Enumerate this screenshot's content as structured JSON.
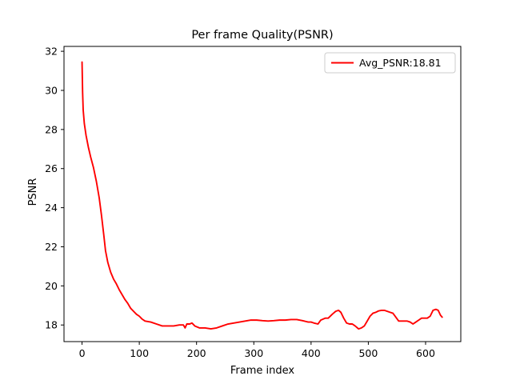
{
  "chart_data": {
    "type": "line",
    "title": "Per frame Quality(PSNR)",
    "xlabel": "Frame index",
    "ylabel": "PSNR",
    "xlim": [
      -31.5,
      661.5
    ],
    "ylim": [
      17.15,
      32.25
    ],
    "xticks": [
      0,
      100,
      200,
      300,
      400,
      500,
      600
    ],
    "yticks": [
      18,
      20,
      22,
      24,
      26,
      28,
      30,
      32
    ],
    "grid": false,
    "legend_position": "top-right",
    "series": [
      {
        "name": "Avg_PSNR:18.81",
        "color": "#ff0000",
        "points": [
          [
            0,
            31.45
          ],
          [
            1,
            29.9
          ],
          [
            2,
            29.0
          ],
          [
            4,
            28.3
          ],
          [
            7,
            27.7
          ],
          [
            11,
            27.1
          ],
          [
            15,
            26.6
          ],
          [
            20,
            26.05
          ],
          [
            25,
            25.35
          ],
          [
            30,
            24.5
          ],
          [
            34,
            23.6
          ],
          [
            38,
            22.6
          ],
          [
            41,
            21.8
          ],
          [
            45,
            21.2
          ],
          [
            50,
            20.7
          ],
          [
            55,
            20.35
          ],
          [
            60,
            20.1
          ],
          [
            65,
            19.8
          ],
          [
            70,
            19.55
          ],
          [
            75,
            19.3
          ],
          [
            80,
            19.1
          ],
          [
            85,
            18.85
          ],
          [
            90,
            18.7
          ],
          [
            95,
            18.55
          ],
          [
            100,
            18.45
          ],
          [
            105,
            18.3
          ],
          [
            110,
            18.2
          ],
          [
            120,
            18.15
          ],
          [
            130,
            18.05
          ],
          [
            140,
            17.95
          ],
          [
            150,
            17.95
          ],
          [
            160,
            17.95
          ],
          [
            170,
            18.0
          ],
          [
            177,
            18.0
          ],
          [
            180,
            17.85
          ],
          [
            183,
            18.05
          ],
          [
            188,
            18.05
          ],
          [
            192,
            18.1
          ],
          [
            197,
            17.95
          ],
          [
            205,
            17.85
          ],
          [
            215,
            17.85
          ],
          [
            225,
            17.8
          ],
          [
            235,
            17.85
          ],
          [
            245,
            17.95
          ],
          [
            255,
            18.05
          ],
          [
            265,
            18.1
          ],
          [
            275,
            18.15
          ],
          [
            285,
            18.2
          ],
          [
            295,
            18.25
          ],
          [
            305,
            18.25
          ],
          [
            315,
            18.22
          ],
          [
            325,
            18.2
          ],
          [
            335,
            18.22
          ],
          [
            345,
            18.25
          ],
          [
            355,
            18.25
          ],
          [
            365,
            18.28
          ],
          [
            375,
            18.28
          ],
          [
            385,
            18.22
          ],
          [
            395,
            18.15
          ],
          [
            400,
            18.15
          ],
          [
            405,
            18.1
          ],
          [
            412,
            18.05
          ],
          [
            417,
            18.25
          ],
          [
            425,
            18.35
          ],
          [
            430,
            18.35
          ],
          [
            437,
            18.55
          ],
          [
            443,
            18.7
          ],
          [
            448,
            18.75
          ],
          [
            452,
            18.65
          ],
          [
            457,
            18.35
          ],
          [
            462,
            18.1
          ],
          [
            467,
            18.05
          ],
          [
            472,
            18.05
          ],
          [
            477,
            17.95
          ],
          [
            483,
            17.8
          ],
          [
            488,
            17.85
          ],
          [
            493,
            17.95
          ],
          [
            498,
            18.2
          ],
          [
            503,
            18.45
          ],
          [
            508,
            18.6
          ],
          [
            513,
            18.65
          ],
          [
            518,
            18.72
          ],
          [
            523,
            18.75
          ],
          [
            528,
            18.75
          ],
          [
            533,
            18.7
          ],
          [
            538,
            18.65
          ],
          [
            543,
            18.6
          ],
          [
            548,
            18.4
          ],
          [
            553,
            18.2
          ],
          [
            558,
            18.2
          ],
          [
            563,
            18.2
          ],
          [
            568,
            18.2
          ],
          [
            573,
            18.15
          ],
          [
            578,
            18.05
          ],
          [
            583,
            18.15
          ],
          [
            588,
            18.25
          ],
          [
            593,
            18.35
          ],
          [
            598,
            18.35
          ],
          [
            603,
            18.35
          ],
          [
            608,
            18.45
          ],
          [
            613,
            18.75
          ],
          [
            618,
            18.8
          ],
          [
            622,
            18.75
          ],
          [
            626,
            18.5
          ],
          [
            629,
            18.4
          ]
        ]
      }
    ]
  }
}
